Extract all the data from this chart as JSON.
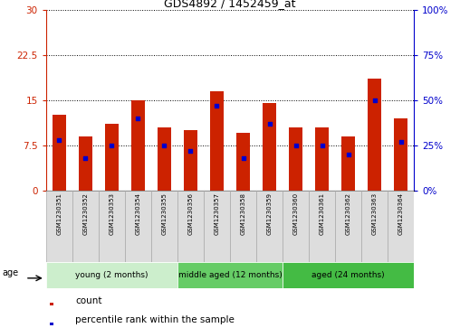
{
  "title": "GDS4892 / 1452459_at",
  "samples": [
    "GSM1230351",
    "GSM1230352",
    "GSM1230353",
    "GSM1230354",
    "GSM1230355",
    "GSM1230356",
    "GSM1230357",
    "GSM1230358",
    "GSM1230359",
    "GSM1230360",
    "GSM1230361",
    "GSM1230362",
    "GSM1230363",
    "GSM1230364"
  ],
  "counts": [
    12.5,
    9.0,
    11.0,
    15.0,
    10.5,
    10.0,
    16.5,
    9.5,
    14.5,
    10.5,
    10.5,
    9.0,
    18.5,
    12.0
  ],
  "percentiles": [
    28,
    18,
    25,
    40,
    25,
    22,
    47,
    18,
    37,
    25,
    25,
    20,
    50,
    27
  ],
  "bar_color": "#cc2200",
  "dot_color": "#0000cc",
  "ylim_left": [
    0,
    30
  ],
  "ylim_right": [
    0,
    100
  ],
  "yticks_left": [
    0,
    7.5,
    15,
    22.5,
    30
  ],
  "yticks_right": [
    0,
    25,
    50,
    75,
    100
  ],
  "ytick_labels_left": [
    "0",
    "7.5",
    "15",
    "22.5",
    "30"
  ],
  "ytick_labels_right": [
    "0%",
    "25%",
    "50%",
    "75%",
    "100%"
  ],
  "group_defs": [
    {
      "label": "young (2 months)",
      "start": 0,
      "end": 4,
      "color": "#cceecc"
    },
    {
      "label": "middle aged (12 months)",
      "start": 5,
      "end": 8,
      "color": "#66cc66"
    },
    {
      "label": "aged (24 months)",
      "start": 9,
      "end": 13,
      "color": "#44bb44"
    }
  ],
  "age_label": "age",
  "legend_count_label": "count",
  "legend_percentile_label": "percentile rank within the sample",
  "background_color": "#ffffff",
  "tick_color_left": "#cc2200",
  "tick_color_right": "#0000cc",
  "bar_width": 0.5,
  "sample_box_color": "#dddddd",
  "sample_box_edge": "#aaaaaa"
}
